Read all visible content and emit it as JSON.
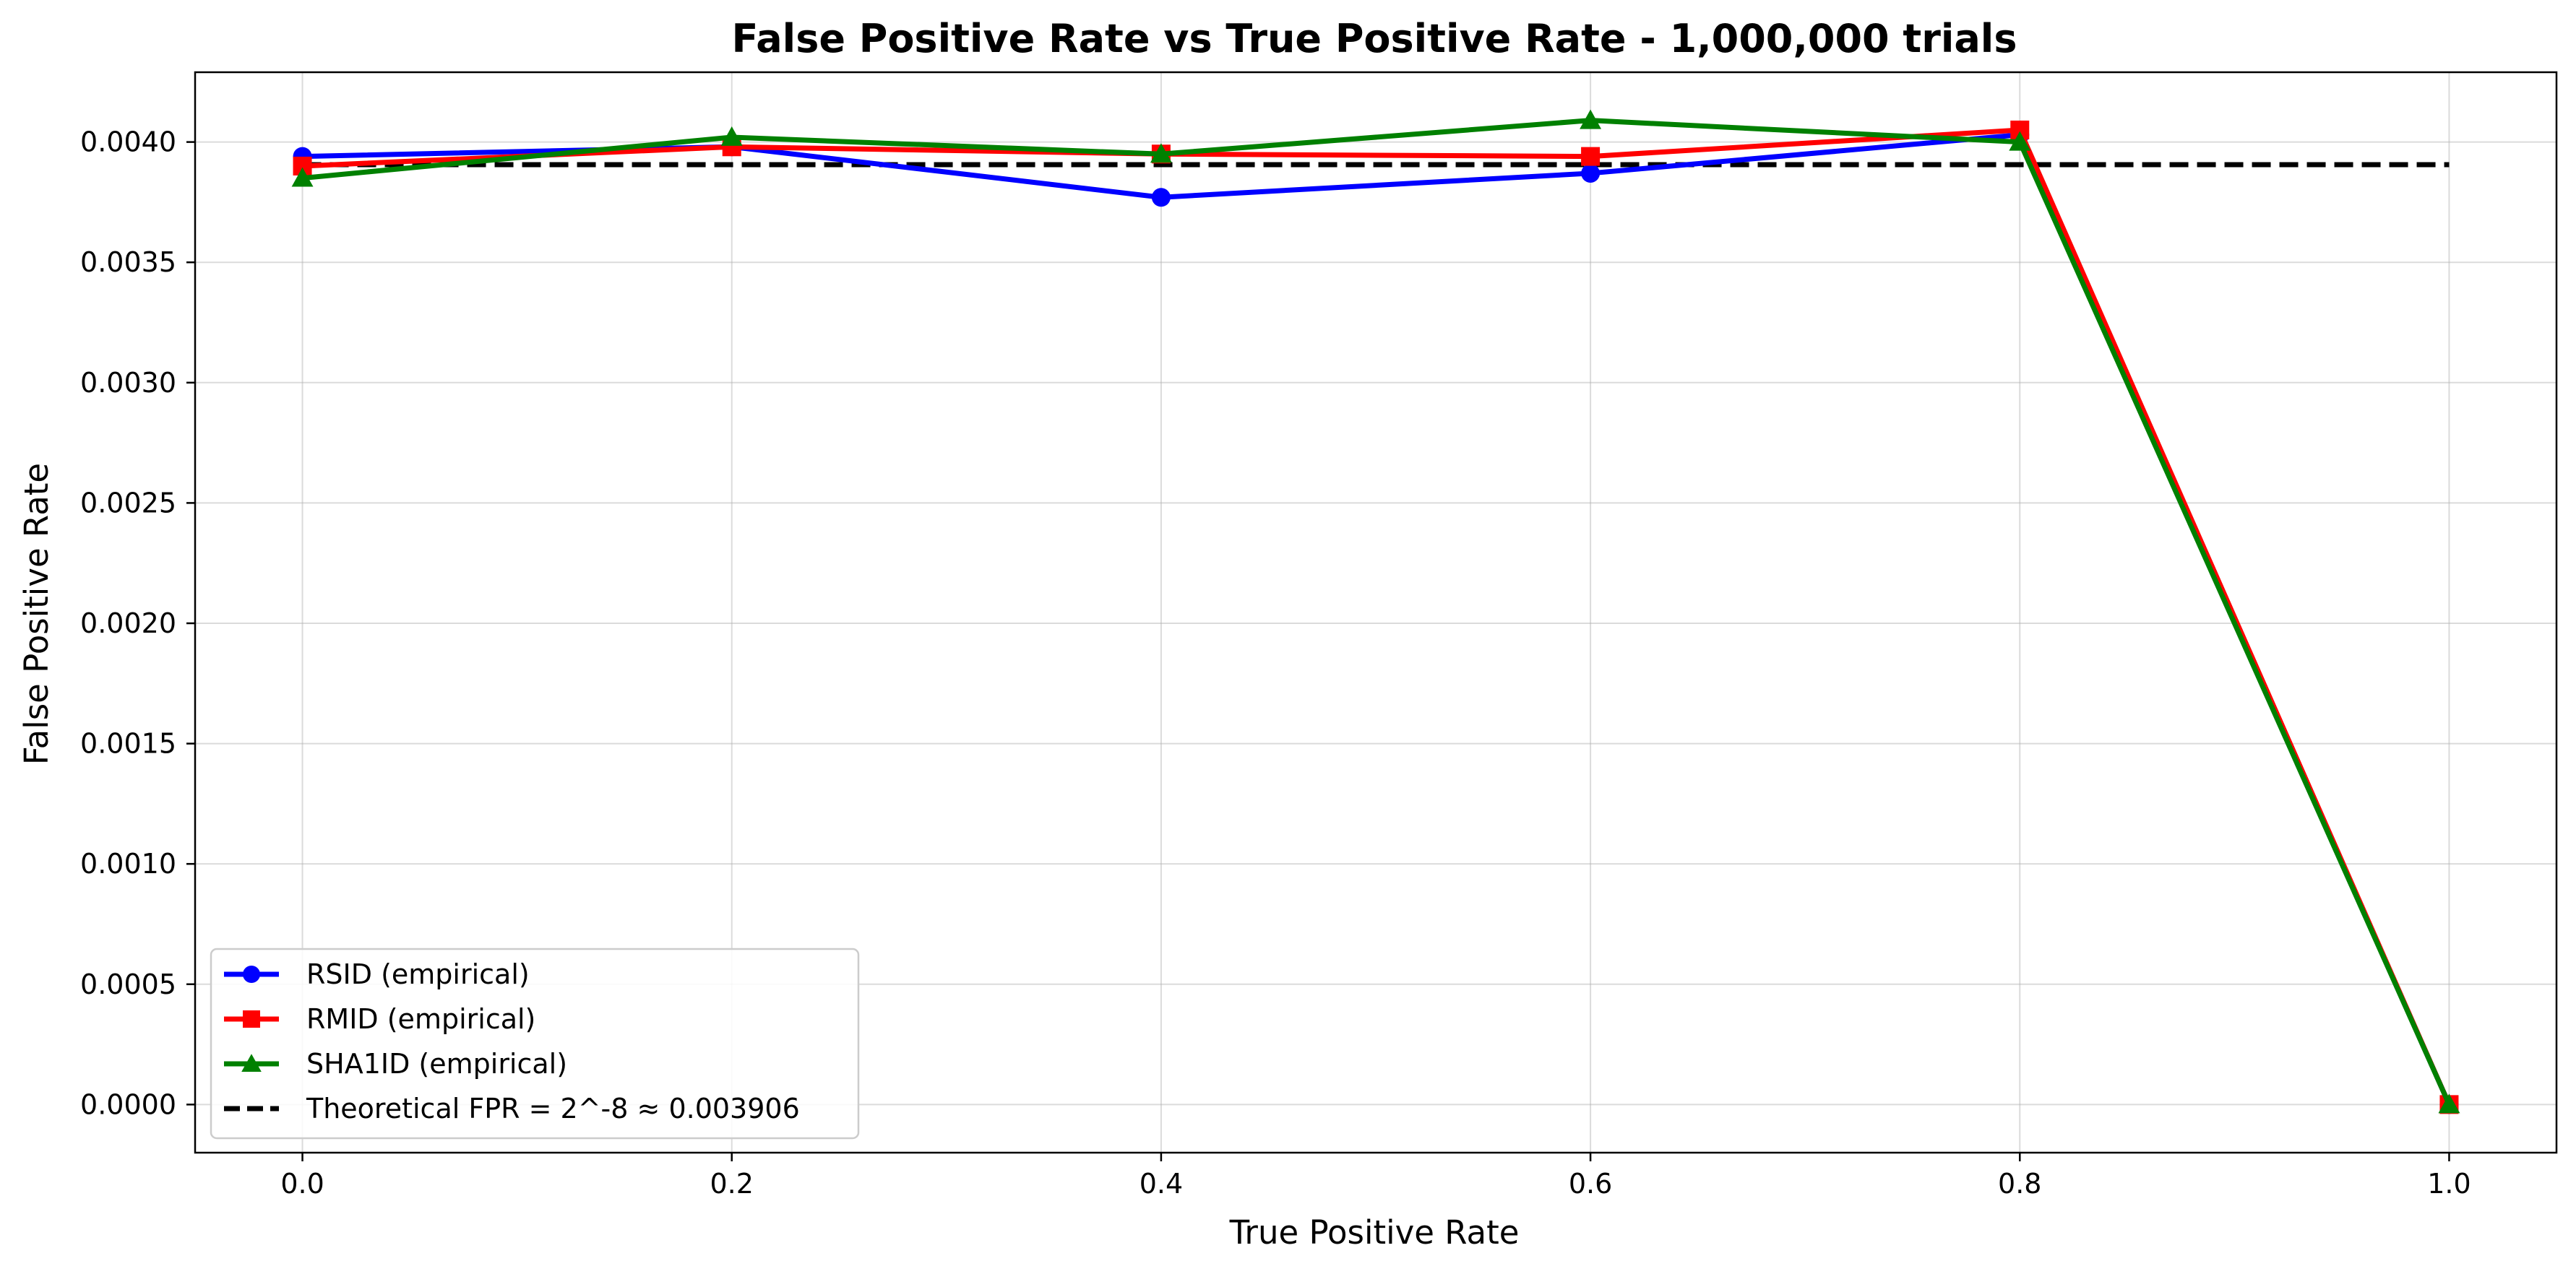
{
  "chart_data": {
    "type": "line",
    "title": "False Positive Rate vs True Positive Rate - 1,000,000 trials",
    "xlabel": "True Positive Rate",
    "ylabel": "False Positive Rate",
    "xlim": [
      -0.05,
      1.05
    ],
    "ylim": [
      -0.0002,
      0.00429
    ],
    "x_ticks": [
      0.0,
      0.2,
      0.4,
      0.6,
      0.8,
      1.0
    ],
    "x_tick_labels": [
      "0.0",
      "0.2",
      "0.4",
      "0.6",
      "0.8",
      "1.0"
    ],
    "y_ticks": [
      0.0,
      0.0005,
      0.001,
      0.0015,
      0.002,
      0.0025,
      0.003,
      0.0035,
      0.004
    ],
    "y_tick_labels": [
      "0.0000",
      "0.0005",
      "0.0010",
      "0.0015",
      "0.0020",
      "0.0025",
      "0.0030",
      "0.0035",
      "0.0040"
    ],
    "grid": true,
    "legend_position": "lower-left",
    "x": [
      0.0,
      0.2,
      0.4,
      0.6,
      0.8,
      1.0
    ],
    "series": [
      {
        "name": "RSID (empirical)",
        "values": [
          0.00394,
          0.00398,
          0.00377,
          0.00387,
          0.00403,
          0.0
        ],
        "color": "#0000ff",
        "marker": "circle",
        "line": "solid"
      },
      {
        "name": "RMID (empirical)",
        "values": [
          0.0039,
          0.00398,
          0.00395,
          0.00394,
          0.00405,
          0.0
        ],
        "color": "#ff0000",
        "marker": "square",
        "line": "solid"
      },
      {
        "name": "SHA1ID (empirical)",
        "values": [
          0.00385,
          0.00402,
          0.00395,
          0.00409,
          0.004,
          0.0
        ],
        "color": "#008000",
        "marker": "triangle",
        "line": "solid"
      },
      {
        "name": "Theoretical FPR = 2^-8 ≈ 0.003906",
        "values": [
          0.003906,
          0.003906,
          0.003906,
          0.003906,
          0.003906,
          0.003906
        ],
        "color": "#000000",
        "marker": "none",
        "line": "dashed"
      }
    ]
  }
}
